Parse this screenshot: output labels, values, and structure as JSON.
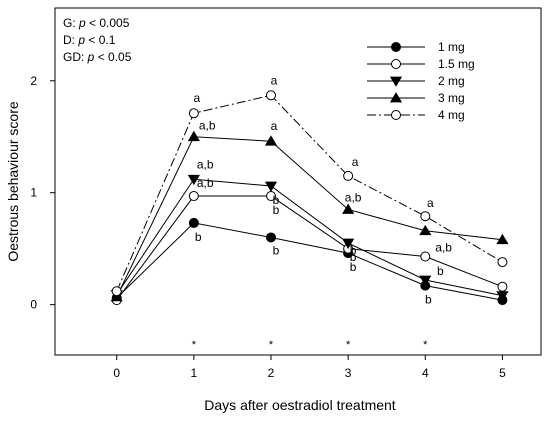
{
  "chart_data": {
    "type": "line",
    "xlabel": "Days after oestradiol treatment",
    "ylabel": "Oestrous behaviour score",
    "xlim": [
      -0.8,
      5.5
    ],
    "ylim": [
      -0.45,
      2.65
    ],
    "xticks": [
      0,
      1,
      2,
      3,
      4,
      5
    ],
    "yticks": [
      0,
      1,
      2
    ],
    "x": [
      0,
      1,
      2,
      3,
      4,
      5
    ],
    "stats": [
      {
        "prefix": "G: ",
        "p": "p",
        "suffix": " < 0.005"
      },
      {
        "prefix": "D: ",
        "p": "p",
        "suffix": " < 0.1"
      },
      {
        "prefix": "GD: ",
        "p": "p",
        "suffix": " < 0.05"
      }
    ],
    "legend_position": "top-right",
    "series": [
      {
        "name": "1 mg",
        "marker": "filled-circle",
        "dash": "solid",
        "values": [
          0.06,
          0.73,
          0.6,
          0.46,
          0.17,
          0.04
        ]
      },
      {
        "name": "1.5 mg",
        "marker": "open-circle",
        "dash": "solid",
        "values": [
          0.04,
          0.97,
          0.97,
          0.5,
          0.43,
          0.16
        ]
      },
      {
        "name": "2 mg",
        "marker": "filled-triangle-down",
        "dash": "solid",
        "values": [
          0.09,
          1.12,
          1.06,
          0.55,
          0.22,
          0.08
        ]
      },
      {
        "name": "3 mg",
        "marker": "filled-triangle-up",
        "dash": "solid",
        "values": [
          0.07,
          1.5,
          1.46,
          0.85,
          0.66,
          0.58
        ]
      },
      {
        "name": "4 mg",
        "marker": "open-circle",
        "dash": "dash-dot",
        "values": [
          0.12,
          1.71,
          1.87,
          1.15,
          0.79,
          0.38
        ]
      }
    ],
    "annotations": [
      {
        "text": "a",
        "x": 1,
        "y": 1.71
      },
      {
        "text": "a,b",
        "x": 1,
        "y": 1.5
      },
      {
        "text": "a,b",
        "x": 1,
        "y": 1.12
      },
      {
        "text": "a,b",
        "x": 1,
        "y": 0.97
      },
      {
        "text": "b",
        "x": 1,
        "y": 0.73
      },
      {
        "text": "a",
        "x": 2,
        "y": 1.87
      },
      {
        "text": "a",
        "x": 2,
        "y": 1.46
      },
      {
        "text": "b",
        "x": 2,
        "y": 1.06
      },
      {
        "text": "b",
        "x": 2,
        "y": 0.97
      },
      {
        "text": "b",
        "x": 2,
        "y": 0.6
      },
      {
        "text": "a",
        "x": 3,
        "y": 1.15
      },
      {
        "text": "a,b",
        "x": 3,
        "y": 0.85
      },
      {
        "text": "b",
        "x": 3,
        "y": 0.55
      },
      {
        "text": "b",
        "x": 3,
        "y": 0.5
      },
      {
        "text": "b",
        "x": 3,
        "y": 0.46
      },
      {
        "text": "a",
        "x": 4,
        "y": 0.79
      },
      {
        "text": "a,b",
        "x": 4,
        "y": 0.43
      },
      {
        "text": "b",
        "x": 4,
        "y": 0.22
      },
      {
        "text": "b",
        "x": 4,
        "y": 0.17
      }
    ],
    "significance": {
      "symbol": "*",
      "days": [
        1,
        2,
        3,
        4
      ]
    }
  }
}
